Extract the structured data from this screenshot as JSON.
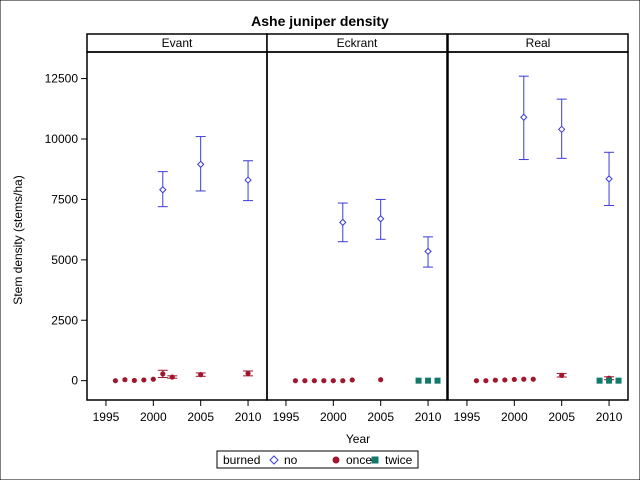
{
  "chart_data": {
    "type": "scatter",
    "title": "Ashe juniper density",
    "xlabel": "Year",
    "ylabel": "Stem density (stems/ha)",
    "xlim": [
      1993,
      2012
    ],
    "ylim": [
      -800,
      13600
    ],
    "xticks": [
      1995,
      2000,
      2005,
      2010
    ],
    "yticks": [
      0,
      2500,
      5000,
      7500,
      10000,
      12500
    ],
    "grid": false,
    "legend_position": "bottom-center",
    "legend": {
      "title": "burned",
      "entries": [
        {
          "key": "no",
          "label": "no",
          "marker": "diamond-open",
          "color": "#3b3bd6"
        },
        {
          "key": "once",
          "label": "once",
          "marker": "circle-filled",
          "color": "#a0162c"
        },
        {
          "key": "twice",
          "label": "twice",
          "marker": "square-filled",
          "color": "#137a6a"
        }
      ]
    },
    "panels": [
      {
        "name": "Evant",
        "series": [
          {
            "name": "no",
            "points": [
              {
                "x": 2001,
                "y": 7900,
                "lo": 7200,
                "hi": 8650
              },
              {
                "x": 2005,
                "y": 8950,
                "lo": 7850,
                "hi": 10100
              },
              {
                "x": 2010,
                "y": 8300,
                "lo": 7450,
                "hi": 9100
              }
            ]
          },
          {
            "name": "once",
            "points": [
              {
                "x": 1996,
                "y": 0
              },
              {
                "x": 1997,
                "y": 40
              },
              {
                "x": 1998,
                "y": 10
              },
              {
                "x": 1999,
                "y": 30
              },
              {
                "x": 2000,
                "y": 60
              },
              {
                "x": 2001,
                "y": 280,
                "lo": 130,
                "hi": 430
              },
              {
                "x": 2002,
                "y": 150,
                "lo": 100,
                "hi": 200
              },
              {
                "x": 2005,
                "y": 250,
                "lo": 180,
                "hi": 320
              },
              {
                "x": 2010,
                "y": 300,
                "lo": 200,
                "hi": 400
              }
            ]
          },
          {
            "name": "twice",
            "points": []
          }
        ]
      },
      {
        "name": "Eckrant",
        "series": [
          {
            "name": "no",
            "points": [
              {
                "x": 2001,
                "y": 6550,
                "lo": 5750,
                "hi": 7350
              },
              {
                "x": 2005,
                "y": 6700,
                "lo": 5850,
                "hi": 7500
              },
              {
                "x": 2010,
                "y": 5350,
                "lo": 4700,
                "hi": 5950
              }
            ]
          },
          {
            "name": "once",
            "points": [
              {
                "x": 1996,
                "y": 0
              },
              {
                "x": 1997,
                "y": 0
              },
              {
                "x": 1998,
                "y": 0
              },
              {
                "x": 1999,
                "y": 0
              },
              {
                "x": 2000,
                "y": 0
              },
              {
                "x": 2001,
                "y": 0
              },
              {
                "x": 2002,
                "y": 30
              },
              {
                "x": 2005,
                "y": 40
              },
              {
                "x": 2010,
                "y": 0
              }
            ]
          },
          {
            "name": "twice",
            "points": [
              {
                "x": 2009,
                "y": 0
              },
              {
                "x": 2010,
                "y": 0
              },
              {
                "x": 2011,
                "y": 0
              }
            ]
          }
        ]
      },
      {
        "name": "Real",
        "series": [
          {
            "name": "no",
            "points": [
              {
                "x": 2001,
                "y": 10900,
                "lo": 9150,
                "hi": 12600
              },
              {
                "x": 2005,
                "y": 10400,
                "lo": 9200,
                "hi": 11650
              },
              {
                "x": 2010,
                "y": 8350,
                "lo": 7250,
                "hi": 9450
              }
            ]
          },
          {
            "name": "once",
            "points": [
              {
                "x": 1996,
                "y": 0
              },
              {
                "x": 1997,
                "y": 0
              },
              {
                "x": 1998,
                "y": 20
              },
              {
                "x": 1999,
                "y": 30
              },
              {
                "x": 2000,
                "y": 50
              },
              {
                "x": 2001,
                "y": 60
              },
              {
                "x": 2002,
                "y": 60
              },
              {
                "x": 2005,
                "y": 220,
                "lo": 150,
                "hi": 300
              },
              {
                "x": 2010,
                "y": 100,
                "lo": 40,
                "hi": 160
              }
            ]
          },
          {
            "name": "twice",
            "points": [
              {
                "x": 2009,
                "y": 0
              },
              {
                "x": 2010,
                "y": 0
              },
              {
                "x": 2011,
                "y": 0
              }
            ]
          }
        ]
      }
    ]
  }
}
